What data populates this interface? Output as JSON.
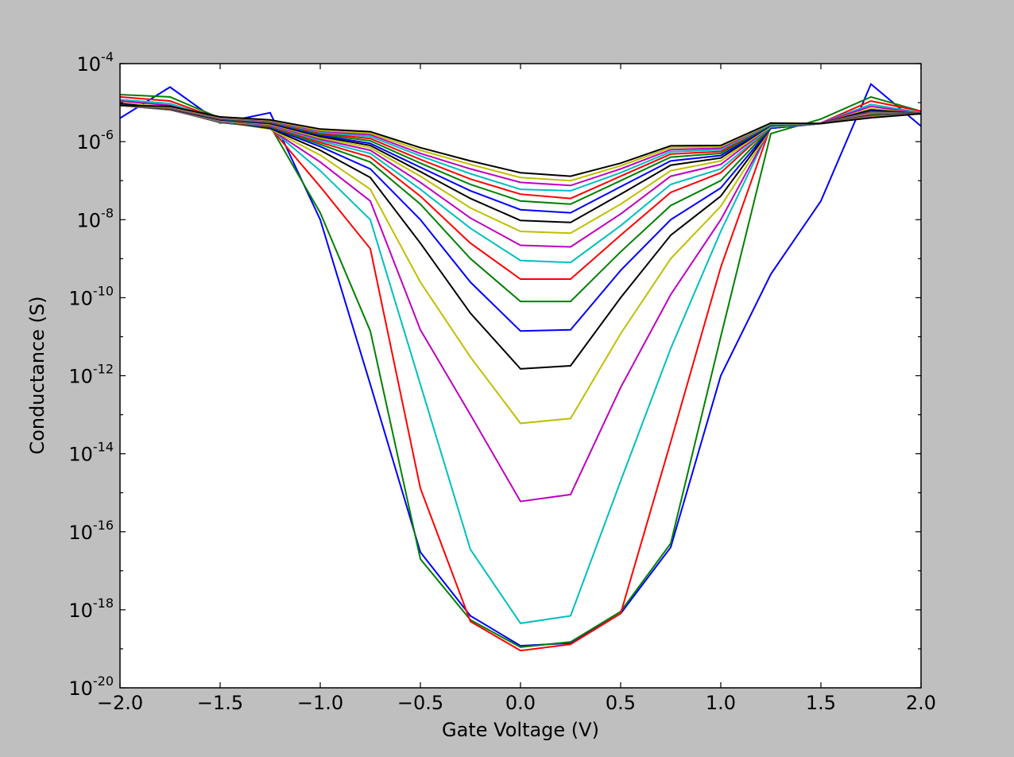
{
  "chart_data": {
    "type": "line",
    "xlabel": "Gate Voltage (V)",
    "ylabel": "Conductance (S)",
    "xlim": [
      -2.0,
      2.0
    ],
    "ylim": [
      1e-20,
      0.0001
    ],
    "yscale": "log",
    "grid": false,
    "legend": "none",
    "xticks": [
      "−2.0",
      "−1.5",
      "−1.0",
      "−0.5",
      "0.0",
      "0.5",
      "1.0",
      "1.5",
      "2.0"
    ],
    "xtick_values": [
      -2.0,
      -1.5,
      -1.0,
      -0.5,
      0.0,
      0.5,
      1.0,
      1.5,
      2.0
    ],
    "yticks": [
      {
        "base": "10",
        "exp": "-20",
        "value": -20
      },
      {
        "base": "10",
        "exp": "-18",
        "value": -18
      },
      {
        "base": "10",
        "exp": "-16",
        "value": -16
      },
      {
        "base": "10",
        "exp": "-14",
        "value": -14
      },
      {
        "base": "10",
        "exp": "-12",
        "value": -12
      },
      {
        "base": "10",
        "exp": "-10",
        "value": -10
      },
      {
        "base": "10",
        "exp": "-8",
        "value": -8
      },
      {
        "base": "10",
        "exp": "-6",
        "value": -6
      },
      {
        "base": "10",
        "exp": "-4",
        "value": -4
      }
    ],
    "x": [
      -2.0,
      -1.75,
      -1.5,
      -1.25,
      -1.0,
      -0.75,
      -0.5,
      -0.25,
      0.0,
      0.25,
      0.5,
      0.75,
      1.0,
      1.25,
      1.5,
      1.75,
      2.0
    ],
    "series": [
      {
        "color": "#0000ff",
        "values": [
          4e-06,
          2.5e-05,
          3e-06,
          5.5e-06,
          1e-08,
          6e-13,
          3e-17,
          7e-19,
          1.2e-19,
          1.4e-19,
          8e-19,
          4e-17,
          1e-12,
          4e-10,
          3e-08,
          3e-05,
          2.5e-06
        ]
      },
      {
        "color": "#008000",
        "values": [
          1.6e-05,
          1.4e-05,
          4e-06,
          2.5e-06,
          1.5e-08,
          1.4e-11,
          2e-17,
          5.5e-19,
          1.1e-19,
          1.5e-19,
          9e-19,
          5e-17,
          1e-11,
          1.6e-06,
          3.8e-06,
          1.4e-05,
          6e-06
        ]
      },
      {
        "color": "#ff0000",
        "values": [
          1.4e-05,
          1.1e-05,
          3.8e-06,
          2.3e-06,
          7e-08,
          1.8e-09,
          1.3e-15,
          5e-19,
          9e-20,
          1.3e-19,
          8e-19,
          2e-14,
          6e-10,
          2.5e-06,
          3e-06,
          1.1e-05,
          6e-06
        ]
      },
      {
        "color": "#00bfbf",
        "values": [
          1.2e-05,
          9.5e-06,
          3.6e-06,
          2.2e-06,
          1.8e-07,
          1e-08,
          6e-13,
          3.5e-17,
          4.5e-19,
          7e-19,
          2e-15,
          5e-12,
          5e-09,
          2.4e-06,
          3e-06,
          9e-06,
          5.5e-06
        ]
      },
      {
        "color": "#bf00bf",
        "values": [
          1.1e-05,
          8.5e-06,
          3.4e-06,
          2.1e-06,
          3e-07,
          3e-08,
          1.5e-11,
          1e-13,
          6e-16,
          9e-16,
          5e-13,
          1.2e-10,
          1e-08,
          2.3e-06,
          3e-06,
          8e-06,
          5.3e-06
        ]
      },
      {
        "color": "#bfbf00",
        "values": [
          1e-05,
          7.5e-06,
          3.3e-06,
          2.1e-06,
          4.5e-07,
          6e-08,
          2.5e-10,
          3e-12,
          6e-14,
          8e-14,
          1.2e-11,
          1e-09,
          2.2e-08,
          2.2e-06,
          2.9e-06,
          7e-06,
          5.2e-06
        ]
      },
      {
        "color": "#000000",
        "values": [
          9.5e-06,
          7e-06,
          3.2e-06,
          2.2e-06,
          6e-07,
          1.2e-07,
          2.5e-09,
          4e-11,
          1.5e-12,
          1.8e-12,
          1e-10,
          4e-09,
          4e-08,
          2.2e-06,
          2.9e-06,
          6.5e-06,
          5.2e-06
        ]
      },
      {
        "color": "#0000ff",
        "values": [
          9e-06,
          6.8e-06,
          3.1e-06,
          2.3e-06,
          7.5e-07,
          2e-07,
          1e-08,
          2.5e-10,
          1.4e-11,
          1.5e-11,
          5e-10,
          1e-08,
          6.5e-08,
          2.2e-06,
          2.9e-06,
          6e-06,
          5.2e-06
        ]
      },
      {
        "color": "#008000",
        "values": [
          8.8e-06,
          6.6e-06,
          3.1e-06,
          2.4e-06,
          8.5e-07,
          3e-07,
          2.5e-08,
          1e-09,
          8e-11,
          8e-11,
          1.5e-09,
          2.3e-08,
          1e-07,
          2.3e-06,
          2.9e-06,
          5.8e-06,
          5.2e-06
        ]
      },
      {
        "color": "#ff0000",
        "values": [
          8.6e-06,
          6.5e-06,
          3.2e-06,
          2.5e-06,
          9.5e-07,
          4e-07,
          4e-08,
          2.5e-09,
          3e-10,
          3e-10,
          4e-09,
          5e-08,
          1.6e-07,
          2.4e-06,
          2.9e-06,
          5.6e-06,
          5.2e-06
        ]
      },
      {
        "color": "#00bfbf",
        "values": [
          8.5e-06,
          6.5e-06,
          3.3e-06,
          2.6e-06,
          1.05e-06,
          5e-07,
          6e-08,
          6e-09,
          9e-10,
          8e-10,
          7e-09,
          8e-08,
          2e-07,
          2.4e-06,
          2.9e-06,
          5.4e-06,
          5.2e-06
        ]
      },
      {
        "color": "#bf00bf",
        "values": [
          8.5e-06,
          6.6e-06,
          3.4e-06,
          2.7e-06,
          1.15e-06,
          6e-07,
          9e-08,
          1.1e-08,
          2.2e-09,
          2e-09,
          1.4e-08,
          1.3e-07,
          2.6e-07,
          2.5e-06,
          2.9e-06,
          5.2e-06,
          5.2e-06
        ]
      },
      {
        "color": "#bfbf00",
        "values": [
          8.5e-06,
          6.7e-06,
          3.5e-06,
          2.8e-06,
          1.25e-06,
          7e-07,
          1.3e-07,
          2e-08,
          5e-09,
          4.5e-09,
          2.5e-08,
          1.8e-07,
          3.2e-07,
          2.5e-06,
          2.9e-06,
          5e-06,
          5.2e-06
        ]
      },
      {
        "color": "#000000",
        "values": [
          8.5e-06,
          6.8e-06,
          3.6e-06,
          2.9e-06,
          1.35e-06,
          8e-07,
          1.7e-07,
          3.5e-08,
          9.5e-09,
          8.5e-09,
          4.5e-08,
          2.5e-07,
          3.8e-07,
          2.6e-06,
          2.9e-06,
          4.8e-06,
          5.2e-06
        ]
      },
      {
        "color": "#0000ff",
        "values": [
          8.5e-06,
          6.9e-06,
          3.7e-06,
          3e-06,
          1.45e-06,
          9e-07,
          2.2e-07,
          5.5e-08,
          1.8e-08,
          1.5e-08,
          7e-08,
          3.2e-07,
          4.4e-07,
          2.6e-06,
          2.9e-06,
          4.7e-06,
          5.2e-06
        ]
      },
      {
        "color": "#008000",
        "values": [
          8.5e-06,
          7e-06,
          3.8e-06,
          3.1e-06,
          1.55e-06,
          1.05e-06,
          2.8e-07,
          8e-08,
          3e-08,
          2.5e-08,
          1e-07,
          4e-07,
          5e-07,
          2.7e-06,
          2.9e-06,
          4.6e-06,
          5.2e-06
        ]
      },
      {
        "color": "#ff0000",
        "values": [
          8.5e-06,
          7.2e-06,
          3.9e-06,
          3.2e-06,
          1.65e-06,
          1.2e-06,
          3.5e-07,
          1.1e-07,
          4.5e-08,
          3.5e-08,
          1.3e-07,
          4.8e-07,
          5.6e-07,
          2.8e-06,
          2.9e-06,
          4.5e-06,
          5.2e-06
        ]
      },
      {
        "color": "#00bfbf",
        "values": [
          8.5e-06,
          7.4e-06,
          4e-06,
          3.3e-06,
          1.75e-06,
          1.35e-06,
          4.3e-07,
          1.5e-07,
          6e-08,
          5.5e-08,
          1.6e-07,
          5.5e-07,
          6.2e-07,
          2.8e-06,
          2.9e-06,
          4.4e-06,
          5.2e-06
        ]
      },
      {
        "color": "#bf00bf",
        "values": [
          8.5e-06,
          7.6e-06,
          4.1e-06,
          3.4e-06,
          1.85e-06,
          1.5e-06,
          5e-07,
          2e-07,
          9e-08,
          7.5e-08,
          2e-07,
          6.2e-07,
          6.8e-07,
          2.9e-06,
          2.9e-06,
          4.3e-06,
          5.2e-06
        ]
      },
      {
        "color": "#bfbf00",
        "values": [
          8.5e-06,
          7.8e-06,
          4.2e-06,
          3.5e-06,
          1.95e-06,
          1.65e-06,
          6e-07,
          2.6e-07,
          1.2e-07,
          1e-07,
          2.4e-07,
          7e-07,
          7.4e-07,
          2.9e-06,
          2.9e-06,
          4.2e-06,
          5.2e-06
        ]
      },
      {
        "color": "#000000",
        "values": [
          8.5e-06,
          8e-06,
          4.3e-06,
          3.6e-06,
          2.1e-06,
          1.8e-06,
          7e-07,
          3.2e-07,
          1.6e-07,
          1.3e-07,
          2.8e-07,
          7.8e-07,
          8e-07,
          3e-06,
          2.9e-06,
          4.1e-06,
          5.2e-06
        ]
      }
    ]
  }
}
